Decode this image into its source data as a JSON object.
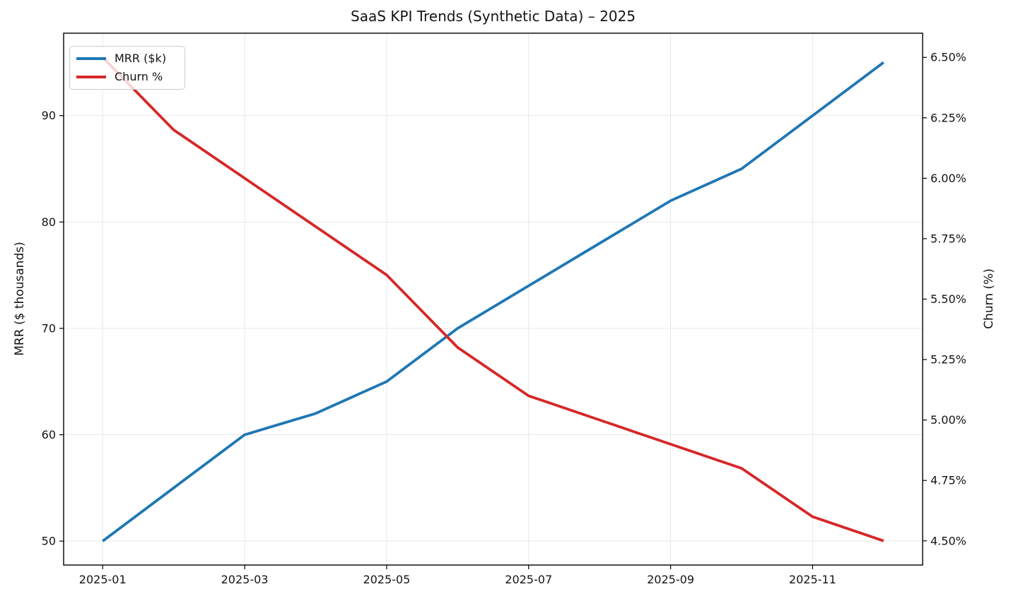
{
  "chart_data": {
    "type": "line",
    "title": "SaaS KPI Trends (Synthetic Data) – 2025",
    "x": [
      "2025-01",
      "2025-02",
      "2025-03",
      "2025-04",
      "2025-05",
      "2025-06",
      "2025-07",
      "2025-08",
      "2025-09",
      "2025-10",
      "2025-11",
      "2025-12"
    ],
    "x_tick_labels": [
      "2025-01",
      "2025-03",
      "2025-05",
      "2025-07",
      "2025-09",
      "2025-11"
    ],
    "series": [
      {
        "name": "MRR ($k)",
        "axis": "left",
        "color": "#1f77b4",
        "values": [
          50,
          55,
          60,
          62,
          65,
          70,
          74,
          78,
          82,
          85,
          90,
          95
        ]
      },
      {
        "name": "Churn %",
        "axis": "right",
        "color": "#d62728",
        "values": [
          6.5,
          6.2,
          6.0,
          5.8,
          5.6,
          5.3,
          5.1,
          5.0,
          4.9,
          4.8,
          4.6,
          4.5
        ]
      }
    ],
    "left_axis": {
      "label": "MRR ($ thousands)",
      "tick_labels": [
        "50",
        "60",
        "70",
        "80",
        "90"
      ],
      "tick_values": [
        50,
        60,
        70,
        80,
        90
      ],
      "range": [
        47.75,
        97.75
      ]
    },
    "right_axis": {
      "label": "Churn (%)",
      "tick_labels": [
        "4.50%",
        "4.75%",
        "5.00%",
        "5.25%",
        "5.50%",
        "5.75%",
        "6.00%",
        "6.25%",
        "6.50%"
      ],
      "tick_values": [
        4.5,
        4.75,
        5.0,
        5.25,
        5.5,
        5.75,
        6.0,
        6.25,
        6.5
      ],
      "range": [
        4.4,
        6.6
      ]
    },
    "grid": true,
    "legend_position": "upper left",
    "colors": {
      "grid": "#e8e8e8",
      "spine": "#000000",
      "tick": "#000000",
      "text": "#141414",
      "legend_border": "#cccccc"
    }
  }
}
